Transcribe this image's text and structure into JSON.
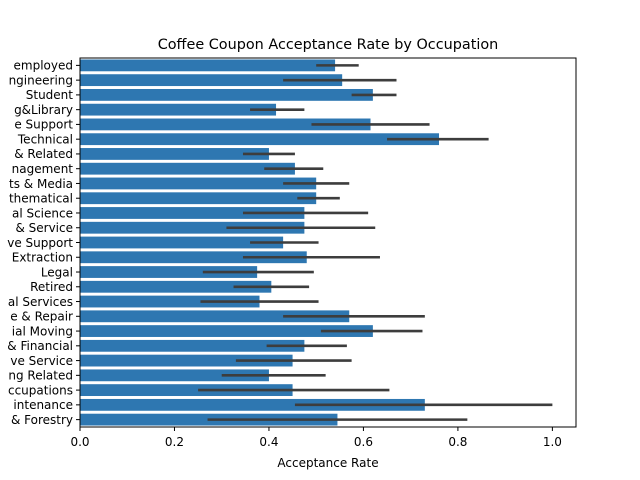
{
  "chart_data": {
    "type": "bar",
    "orientation": "horizontal",
    "title": "Coffee Coupon Acceptance Rate by Occupation",
    "xlabel": "Acceptance Rate",
    "ylabel": "",
    "xlim": [
      0,
      1.05
    ],
    "xticks": [
      0.0,
      0.2,
      0.4,
      0.6,
      0.8,
      1.0
    ],
    "xtick_labels": [
      "0.0",
      "0.2",
      "0.4",
      "0.6",
      "0.8",
      "1.0"
    ],
    "grid": false,
    "legend": false,
    "bar_color": "#2e77b1",
    "errorbar_color": "#3d3d3d",
    "categories": [
      "employed",
      "ngineering",
      "Student",
      "g&Library",
      "e Support",
      "Technical",
      "& Related",
      "nagement",
      "ts & Media",
      "thematical",
      "al Science",
      "& Service",
      "ve Support",
      "Extraction",
      "Legal",
      "Retired",
      "al Services",
      "e & Repair",
      "ial Moving",
      "& Financial",
      "ve Service",
      "ng Related",
      "ccupations",
      "intenance",
      "& Forestry"
    ],
    "values": [
      0.54,
      0.555,
      0.62,
      0.415,
      0.615,
      0.76,
      0.4,
      0.455,
      0.5,
      0.5,
      0.475,
      0.475,
      0.43,
      0.48,
      0.375,
      0.405,
      0.38,
      0.57,
      0.62,
      0.475,
      0.45,
      0.4,
      0.45,
      0.73,
      0.545
    ],
    "error_low": [
      0.5,
      0.43,
      0.575,
      0.36,
      0.49,
      0.65,
      0.345,
      0.39,
      0.43,
      0.46,
      0.345,
      0.31,
      0.36,
      0.345,
      0.26,
      0.325,
      0.255,
      0.43,
      0.51,
      0.395,
      0.33,
      0.3,
      0.25,
      0.455,
      0.27
    ],
    "error_high": [
      0.59,
      0.67,
      0.67,
      0.475,
      0.74,
      0.865,
      0.455,
      0.515,
      0.57,
      0.55,
      0.61,
      0.625,
      0.505,
      0.635,
      0.495,
      0.485,
      0.505,
      0.73,
      0.725,
      0.565,
      0.575,
      0.52,
      0.655,
      1.0,
      0.82
    ]
  }
}
